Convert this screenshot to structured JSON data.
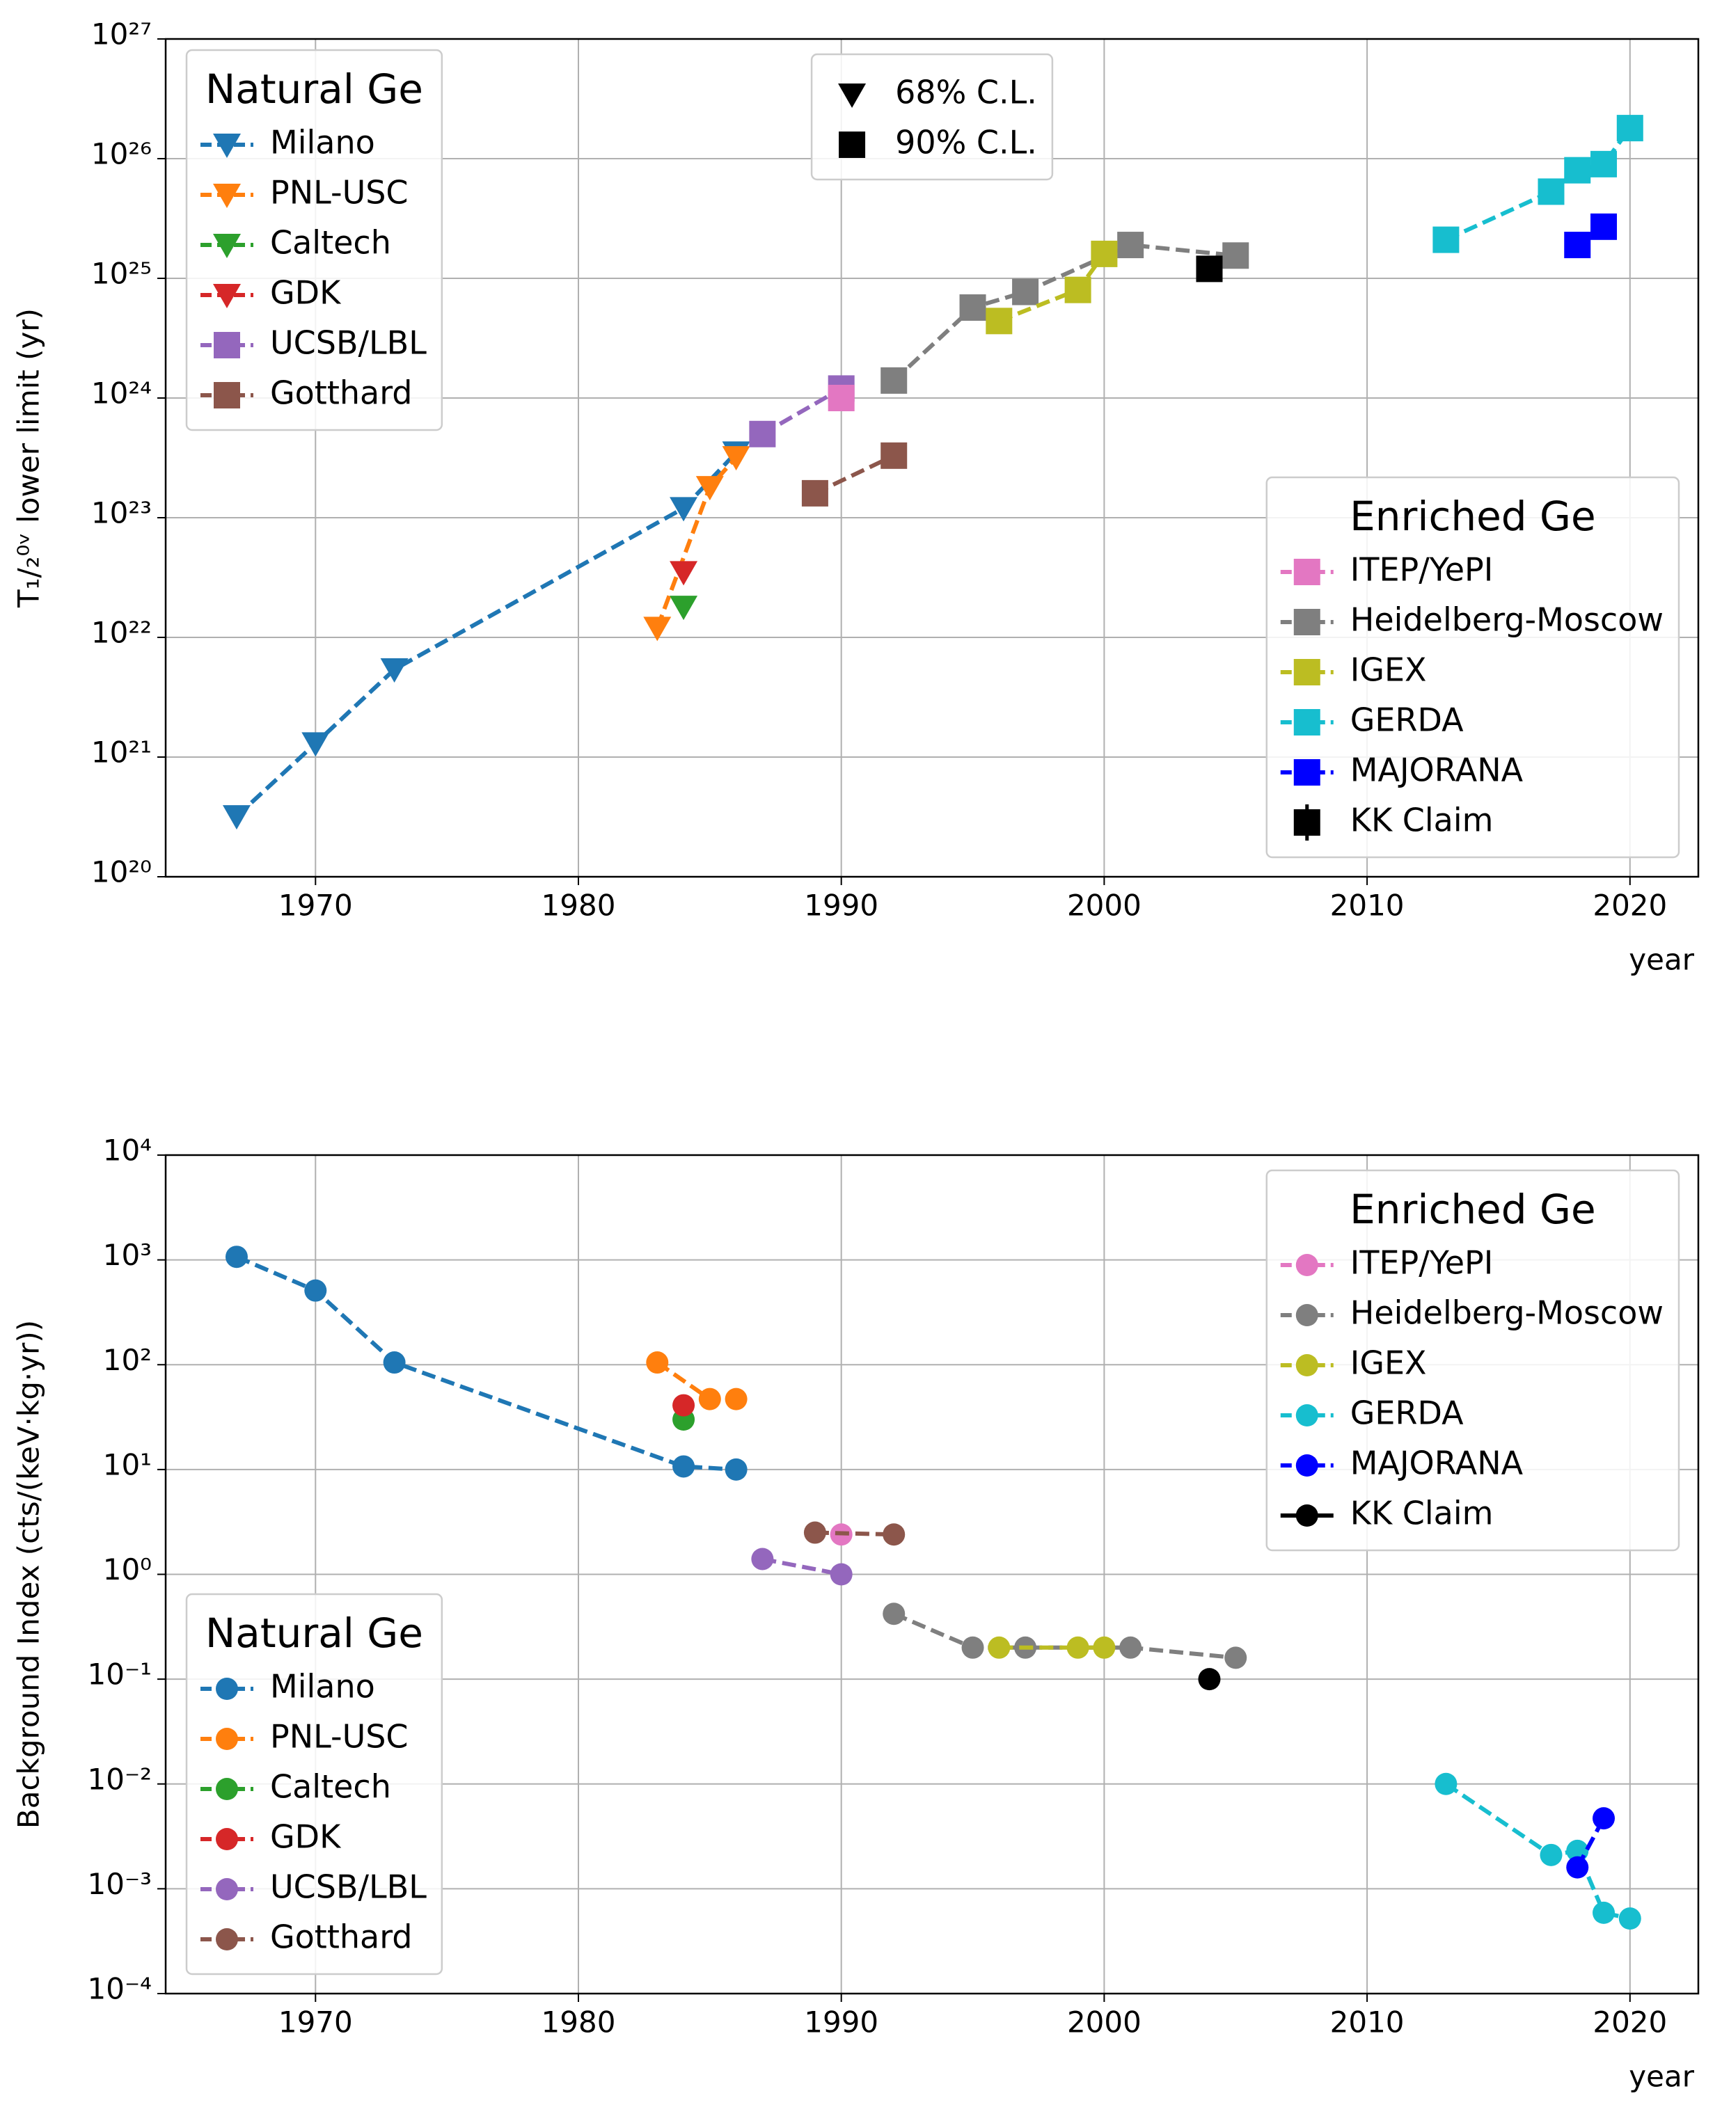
{
  "chart_data": [
    {
      "type": "line",
      "x_label": "year",
      "y_label": "T₁/₂⁰ᵛ lower limit (yr)",
      "log_y": true,
      "grid": true,
      "xlim": [
        1964.3,
        2022.6
      ],
      "xticks": [
        1970,
        1980,
        1990,
        2000,
        2010,
        2020
      ],
      "ylim": [
        1e+20,
        1e+27
      ],
      "yticks": [
        {
          "value": 1e+20,
          "label": "10²⁰"
        },
        {
          "value": 1e+21,
          "label": "10²¹"
        },
        {
          "value": 1e+22,
          "label": "10²²"
        },
        {
          "value": 1e+23,
          "label": "10²³"
        },
        {
          "value": 1e+24,
          "label": "10²⁴"
        },
        {
          "value": 1e+25,
          "label": "10²⁵"
        },
        {
          "value": 1e+26,
          "label": "10²⁶"
        },
        {
          "value": 1e+27,
          "label": "10²⁷"
        }
      ],
      "groups": [
        {
          "title": "Natural Ge",
          "legend_loc": "upper left",
          "series": [
            {
              "name": "Milano",
              "color": "#1f77b4",
              "marker": "triangle",
              "linestyle": "dashed",
              "x": [
                1967,
                1970,
                1973,
                1984,
                1986
              ],
              "values": [
                3.2e+20,
                1.3e+21,
                5.4e+21,
                1.2e+23,
                3.5e+23
              ]
            },
            {
              "name": "PNL-USC",
              "color": "#ff7f0e",
              "marker": "triangle",
              "linestyle": "dashed",
              "x": [
                1983,
                1985,
                1986
              ],
              "values": [
                1.2e+22,
                1.8e+23,
                3.2e+23
              ]
            },
            {
              "name": "Caltech",
              "color": "#2ca02c",
              "marker": "triangle",
              "linestyle": "dashed",
              "x": [
                1984
              ],
              "values": [
                1.8e+22
              ]
            },
            {
              "name": "GDK",
              "color": "#d62728",
              "marker": "triangle",
              "linestyle": "dashed",
              "x": [
                1984
              ],
              "values": [
                3.5e+22
              ]
            },
            {
              "name": "UCSB/LBL",
              "color": "#9467bd",
              "marker": "square",
              "linestyle": "dashed",
              "x": [
                1987,
                1990
              ],
              "values": [
                5e+23,
                1.2e+24
              ]
            },
            {
              "name": "Gotthard",
              "color": "#8c564b",
              "marker": "square",
              "linestyle": "dashed",
              "x": [
                1989,
                1992
              ],
              "values": [
                1.6e+23,
                3.3e+23
              ]
            }
          ]
        },
        {
          "title": "Enriched Ge",
          "legend_loc": "lower right",
          "series": [
            {
              "name": "ITEP/YePI",
              "color": "#e377c2",
              "marker": "square",
              "linestyle": "dashed",
              "x": [
                1990
              ],
              "values": [
                1e+24
              ]
            },
            {
              "name": "Heidelberg-Moscow",
              "color": "#7f7f7f",
              "marker": "square",
              "linestyle": "dashed",
              "x": [
                1992,
                1995,
                1997,
                2001,
                2005
              ],
              "values": [
                1.4e+24,
                5.7e+24,
                7.7e+24,
                1.9e+25,
                1.55e+25
              ]
            },
            {
              "name": "IGEX",
              "color": "#bcbd22",
              "marker": "square",
              "linestyle": "dashed",
              "x": [
                1996,
                1999,
                2000
              ],
              "values": [
                4.4e+24,
                8e+24,
                1.6e+25
              ]
            },
            {
              "name": "GERDA",
              "color": "#17becf",
              "marker": "square",
              "linestyle": "dashed",
              "x": [
                2013,
                2017,
                2018,
                2019,
                2020
              ],
              "values": [
                2.1e+25,
                5.3e+25,
                8e+25,
                9e+25,
                1.8e+26
              ]
            },
            {
              "name": "MAJORANA",
              "color": "#0000ff",
              "marker": "square",
              "linestyle": "dashed",
              "x": [
                2018,
                2019
              ],
              "values": [
                1.9e+25,
                2.7e+25
              ]
            },
            {
              "name": "KK Claim",
              "color": "#000000",
              "marker": "square",
              "linestyle": "none",
              "x": [
                2004
              ],
              "values": [
                1.2e+25
              ]
            }
          ]
        }
      ],
      "marker_legend": {
        "legend_loc": "upper center",
        "entries": [
          {
            "marker": "triangle",
            "label": "68% C.L."
          },
          {
            "marker": "square",
            "label": "90% C.L."
          }
        ]
      }
    },
    {
      "type": "line",
      "x_label": "year",
      "y_label": "Background Index (cts/(keV·kg·yr))",
      "log_y": true,
      "grid": true,
      "xlim": [
        1964.3,
        2022.6
      ],
      "xticks": [
        1970,
        1980,
        1990,
        2000,
        2010,
        2020
      ],
      "ylim": [
        0.0001,
        10000
      ],
      "yticks": [
        {
          "value": 0.0001,
          "label": "10⁻⁴"
        },
        {
          "value": 0.001,
          "label": "10⁻³"
        },
        {
          "value": 0.01,
          "label": "10⁻²"
        },
        {
          "value": 0.1,
          "label": "10⁻¹"
        },
        {
          "value": 1,
          "label": "10⁰"
        },
        {
          "value": 10,
          "label": "10¹"
        },
        {
          "value": 100,
          "label": "10²"
        },
        {
          "value": 1000,
          "label": "10³"
        },
        {
          "value": 10000,
          "label": "10⁴"
        }
      ],
      "groups": [
        {
          "title": "Enriched Ge",
          "legend_loc": "upper right",
          "series": [
            {
              "name": "ITEP/YePI",
              "color": "#e377c2",
              "marker": "circle",
              "linestyle": "dashed",
              "x": [
                1990
              ],
              "values": [
                2.4
              ]
            },
            {
              "name": "Heidelberg-Moscow",
              "color": "#7f7f7f",
              "marker": "circle",
              "linestyle": "dashed",
              "x": [
                1992,
                1995,
                1997,
                2001,
                2005
              ],
              "values": [
                0.42,
                0.2,
                0.2,
                0.2,
                0.16
              ]
            },
            {
              "name": "IGEX",
              "color": "#bcbd22",
              "marker": "circle",
              "linestyle": "dashed",
              "x": [
                1996,
                1999,
                2000
              ],
              "values": [
                0.2,
                0.2,
                0.2
              ]
            },
            {
              "name": "GERDA",
              "color": "#17becf",
              "marker": "circle",
              "linestyle": "dashed",
              "x": [
                2013,
                2017,
                2018,
                2019,
                2020
              ],
              "values": [
                0.01,
                0.0021,
                0.0023,
                0.00059,
                0.00052
              ]
            },
            {
              "name": "MAJORANA",
              "color": "#0000ff",
              "marker": "circle",
              "linestyle": "dashed",
              "x": [
                2018,
                2019
              ],
              "values": [
                0.0016,
                0.0047
              ]
            },
            {
              "name": "KK Claim",
              "color": "#000000",
              "marker": "circle",
              "linestyle": "solid",
              "x": [
                2004
              ],
              "values": [
                0.1
              ]
            }
          ]
        },
        {
          "title": "Natural Ge",
          "legend_loc": "lower left",
          "series": [
            {
              "name": "Milano",
              "color": "#1f77b4",
              "marker": "circle",
              "linestyle": "dashed",
              "x": [
                1967,
                1970,
                1973,
                1984,
                1986
              ],
              "values": [
                1070,
                510,
                105,
                10.7,
                10
              ]
            },
            {
              "name": "PNL-USC",
              "color": "#ff7f0e",
              "marker": "circle",
              "linestyle": "dashed",
              "x": [
                1983,
                1985,
                1986
              ],
              "values": [
                105,
                47,
                47
              ]
            },
            {
              "name": "Caltech",
              "color": "#2ca02c",
              "marker": "circle",
              "linestyle": "dashed",
              "x": [
                1984
              ],
              "values": [
                30
              ]
            },
            {
              "name": "GDK",
              "color": "#d62728",
              "marker": "circle",
              "linestyle": "dashed",
              "x": [
                1984
              ],
              "values": [
                41
              ]
            },
            {
              "name": "UCSB/LBL",
              "color": "#9467bd",
              "marker": "circle",
              "linestyle": "dashed",
              "x": [
                1987,
                1990
              ],
              "values": [
                1.4,
                1
              ]
            },
            {
              "name": "Gotthard",
              "color": "#8c564b",
              "marker": "circle",
              "linestyle": "dashed",
              "x": [
                1989,
                1992
              ],
              "values": [
                2.5,
                2.4
              ]
            }
          ]
        }
      ]
    }
  ]
}
